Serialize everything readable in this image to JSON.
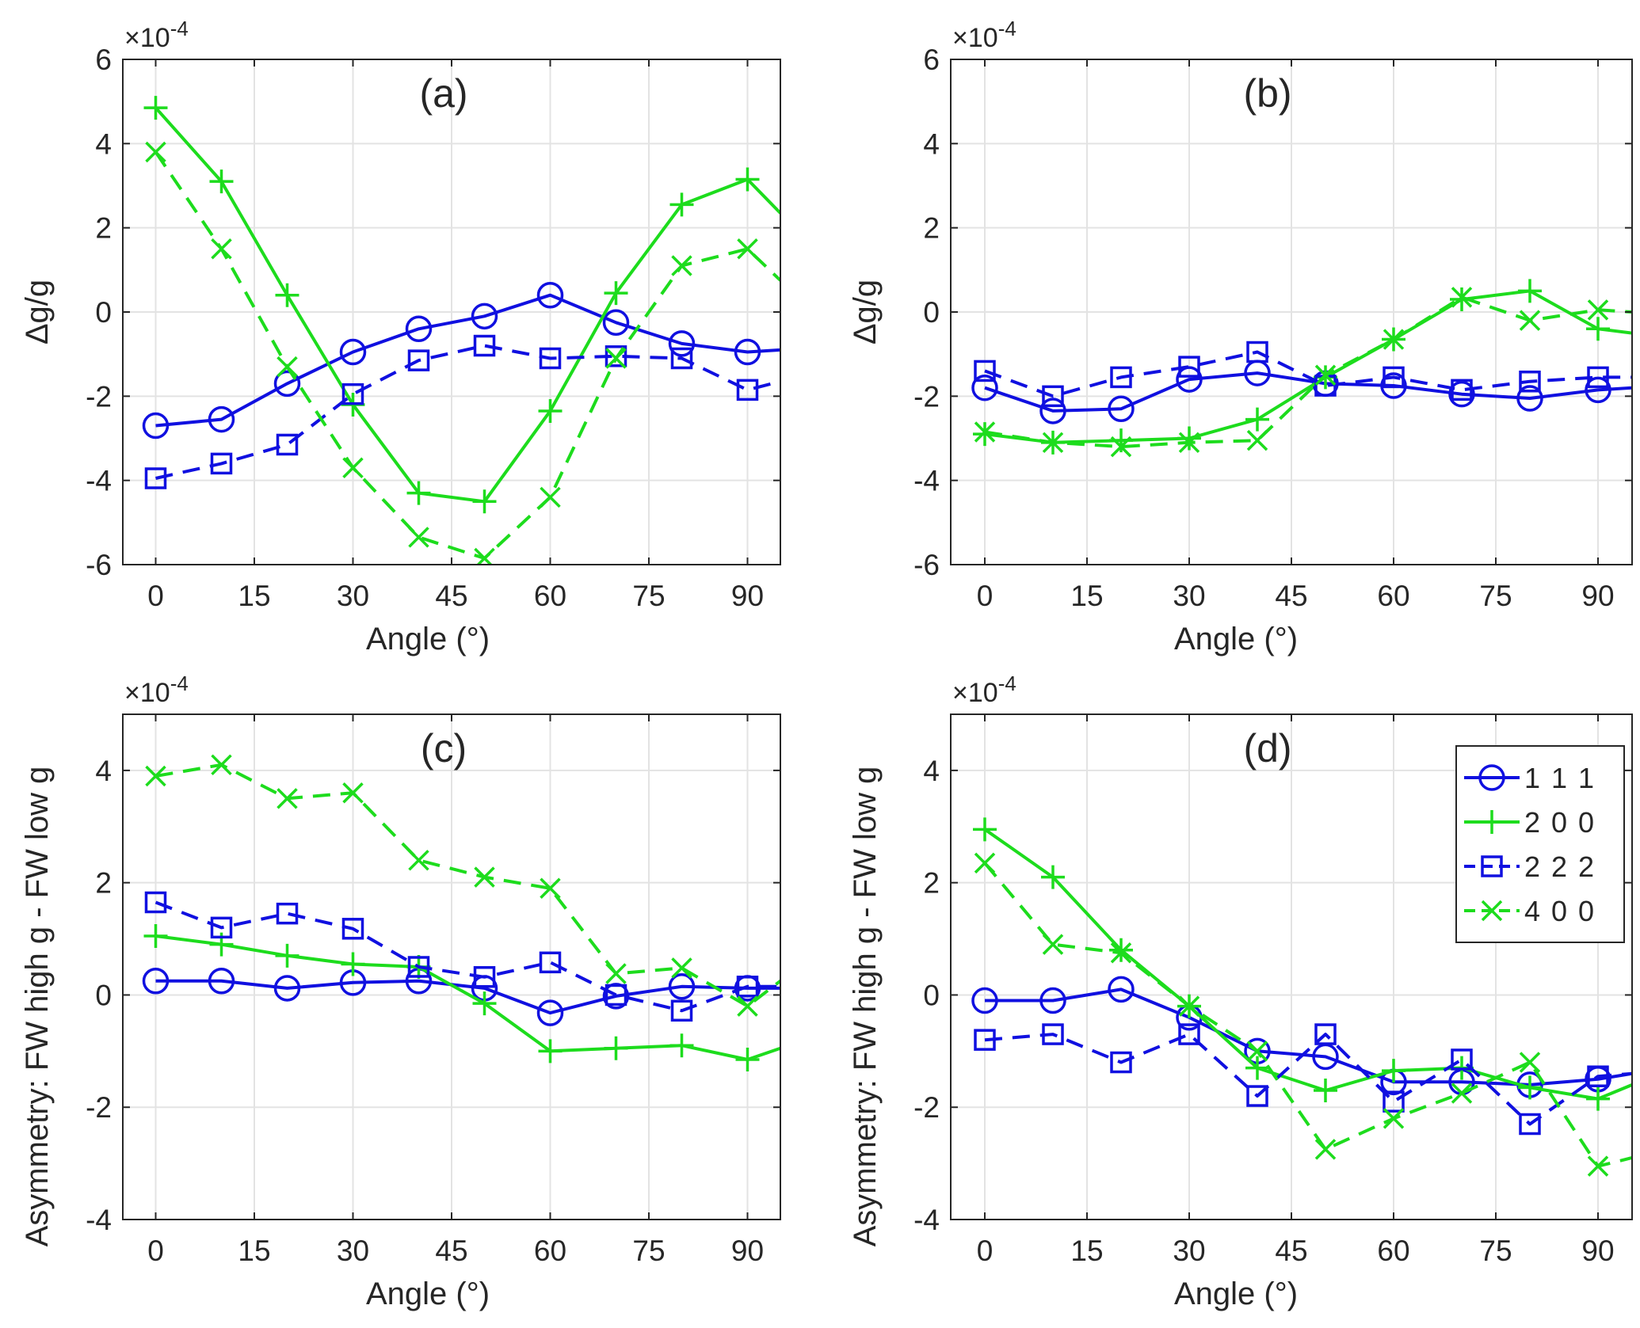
{
  "chart_data": [
    {
      "type": "line",
      "panel_label": "(a)",
      "ylabel": "Δg/g",
      "xlabel": "Angle (°)",
      "exponent_prefix": "×10",
      "exponent_power": "-4",
      "xlim": [
        -5,
        95
      ],
      "ylim": [
        -6,
        6
      ],
      "xticks": [
        0,
        15,
        30,
        45,
        60,
        75,
        90
      ],
      "yticks": [
        -6,
        -4,
        -2,
        0,
        2,
        4,
        6
      ],
      "xtick_labels": [
        "0",
        "15",
        "30",
        "45",
        "60",
        "75",
        "90"
      ],
      "ytick_labels": [
        "-6",
        "-4",
        "-2",
        "0",
        "2",
        "4",
        "6"
      ],
      "grid": true,
      "x": [
        0,
        10,
        20,
        30,
        40,
        50,
        60,
        70,
        80,
        90,
        95
      ],
      "series": [
        {
          "name": "1 1 1",
          "values": [
            -2.7,
            -2.55,
            -1.7,
            -0.95,
            -0.4,
            -0.1,
            0.4,
            -0.25,
            -0.75,
            -0.95,
            -0.9
          ]
        },
        {
          "name": "2 0 0",
          "values": [
            4.85,
            3.1,
            0.4,
            -2.2,
            -4.3,
            -4.5,
            -2.35,
            0.45,
            2.55,
            3.15,
            2.35
          ]
        },
        {
          "name": "2 2 2",
          "values": [
            -3.95,
            -3.6,
            -3.15,
            -1.95,
            -1.15,
            -0.8,
            -1.1,
            -1.05,
            -1.1,
            -1.85,
            -1.65
          ]
        },
        {
          "name": "4 0 0",
          "values": [
            3.8,
            1.5,
            -1.3,
            -3.7,
            -5.35,
            -5.85,
            -4.4,
            -1.1,
            1.1,
            1.5,
            0.75
          ]
        }
      ]
    },
    {
      "type": "line",
      "panel_label": "(b)",
      "ylabel": "Δg/g",
      "xlabel": "Angle (°)",
      "exponent_prefix": "×10",
      "exponent_power": "-4",
      "xlim": [
        -5,
        95
      ],
      "ylim": [
        -6,
        6
      ],
      "xticks": [
        0,
        15,
        30,
        45,
        60,
        75,
        90
      ],
      "yticks": [
        -6,
        -4,
        -2,
        0,
        2,
        4,
        6
      ],
      "xtick_labels": [
        "0",
        "15",
        "30",
        "45",
        "60",
        "75",
        "90"
      ],
      "ytick_labels": [
        "-6",
        "-4",
        "-2",
        "0",
        "2",
        "4",
        "6"
      ],
      "grid": true,
      "x": [
        0,
        10,
        20,
        30,
        40,
        50,
        60,
        70,
        80,
        90,
        95
      ],
      "series": [
        {
          "name": "1 1 1",
          "values": [
            -1.8,
            -2.35,
            -2.3,
            -1.6,
            -1.45,
            -1.7,
            -1.75,
            -1.95,
            -2.05,
            -1.85,
            -1.8
          ]
        },
        {
          "name": "2 0 0",
          "values": [
            -2.9,
            -3.1,
            -3.05,
            -3.0,
            -2.55,
            -1.55,
            -0.65,
            0.3,
            0.5,
            -0.4,
            -0.5
          ]
        },
        {
          "name": "2 2 2",
          "values": [
            -1.4,
            -2.0,
            -1.55,
            -1.3,
            -0.95,
            -1.75,
            -1.55,
            -1.85,
            -1.65,
            -1.55,
            -1.55
          ]
        },
        {
          "name": "4 0 0",
          "values": [
            -2.85,
            -3.1,
            -3.2,
            -3.1,
            -3.05,
            -1.5,
            -0.65,
            0.35,
            -0.2,
            0.05,
            0.0
          ]
        }
      ]
    },
    {
      "type": "line",
      "panel_label": "(c)",
      "ylabel": "Asymmetry: FW high g - FW low g",
      "xlabel": "Angle (°)",
      "exponent_prefix": "×10",
      "exponent_power": "-4",
      "xlim": [
        -5,
        95
      ],
      "ylim": [
        -4,
        5
      ],
      "xticks": [
        0,
        15,
        30,
        45,
        60,
        75,
        90
      ],
      "yticks": [
        -4,
        -2,
        0,
        2,
        4
      ],
      "xtick_labels": [
        "0",
        "15",
        "30",
        "45",
        "60",
        "75",
        "90"
      ],
      "ytick_labels": [
        "-4",
        "-2",
        "0",
        "2",
        "4"
      ],
      "grid": true,
      "x": [
        0,
        10,
        20,
        30,
        40,
        50,
        60,
        70,
        80,
        90,
        95
      ],
      "series": [
        {
          "name": "1 1 1",
          "values": [
            0.25,
            0.25,
            0.12,
            0.22,
            0.25,
            0.12,
            -0.32,
            -0.02,
            0.15,
            0.12,
            0.12
          ]
        },
        {
          "name": "2 0 0",
          "values": [
            1.05,
            0.9,
            0.7,
            0.55,
            0.5,
            -0.15,
            -1.0,
            -0.95,
            -0.9,
            -1.15,
            -0.95
          ]
        },
        {
          "name": "2 2 2",
          "values": [
            1.65,
            1.2,
            1.45,
            1.18,
            0.5,
            0.32,
            0.58,
            0.0,
            -0.28,
            0.15,
            0.15
          ]
        },
        {
          "name": "4 0 0",
          "values": [
            3.9,
            4.1,
            3.5,
            3.6,
            2.4,
            2.1,
            1.9,
            0.38,
            0.48,
            -0.2,
            0.25
          ]
        }
      ]
    },
    {
      "type": "line",
      "panel_label": "(d)",
      "ylabel": "Asymmetry: FW high g - FW low g",
      "xlabel": "Angle (°)",
      "exponent_prefix": "×10",
      "exponent_power": "-4",
      "xlim": [
        -5,
        95
      ],
      "ylim": [
        -4,
        5
      ],
      "xticks": [
        0,
        15,
        30,
        45,
        60,
        75,
        90
      ],
      "yticks": [
        -4,
        -2,
        0,
        2,
        4
      ],
      "xtick_labels": [
        "0",
        "15",
        "30",
        "45",
        "60",
        "75",
        "90"
      ],
      "ytick_labels": [
        "-4",
        "-2",
        "0",
        "2",
        "4"
      ],
      "grid": true,
      "legend": "top-right",
      "x": [
        0,
        10,
        20,
        30,
        40,
        50,
        60,
        70,
        80,
        90,
        95
      ],
      "series": [
        {
          "name": "1 1 1",
          "values": [
            -0.1,
            -0.1,
            0.1,
            -0.4,
            -1.0,
            -1.1,
            -1.55,
            -1.55,
            -1.6,
            -1.5,
            -1.4
          ]
        },
        {
          "name": "2 0 0",
          "values": [
            2.95,
            2.1,
            0.8,
            -0.2,
            -1.3,
            -1.7,
            -1.35,
            -1.3,
            -1.65,
            -1.85,
            -1.6
          ]
        },
        {
          "name": "2 2 2",
          "values": [
            -0.8,
            -0.7,
            -1.2,
            -0.7,
            -1.8,
            -0.7,
            -1.9,
            -1.15,
            -2.3,
            -1.45,
            -1.4
          ]
        },
        {
          "name": "4 0 0",
          "values": [
            2.35,
            0.9,
            0.75,
            -0.2,
            -1.0,
            -2.75,
            -2.2,
            -1.75,
            -1.2,
            -3.05,
            -2.9
          ]
        }
      ]
    }
  ],
  "legend": {
    "entries": [
      {
        "label": "1 1 1",
        "color": "#1010e0",
        "marker": "circle",
        "dash": "solid"
      },
      {
        "label": "2 0 0",
        "color": "#1ddc1d",
        "marker": "plus",
        "dash": "solid"
      },
      {
        "label": "2 2 2",
        "color": "#1010e0",
        "marker": "square",
        "dash": "dashed"
      },
      {
        "label": "4 0 0",
        "color": "#1ddc1d",
        "marker": "x",
        "dash": "dashed"
      }
    ]
  }
}
